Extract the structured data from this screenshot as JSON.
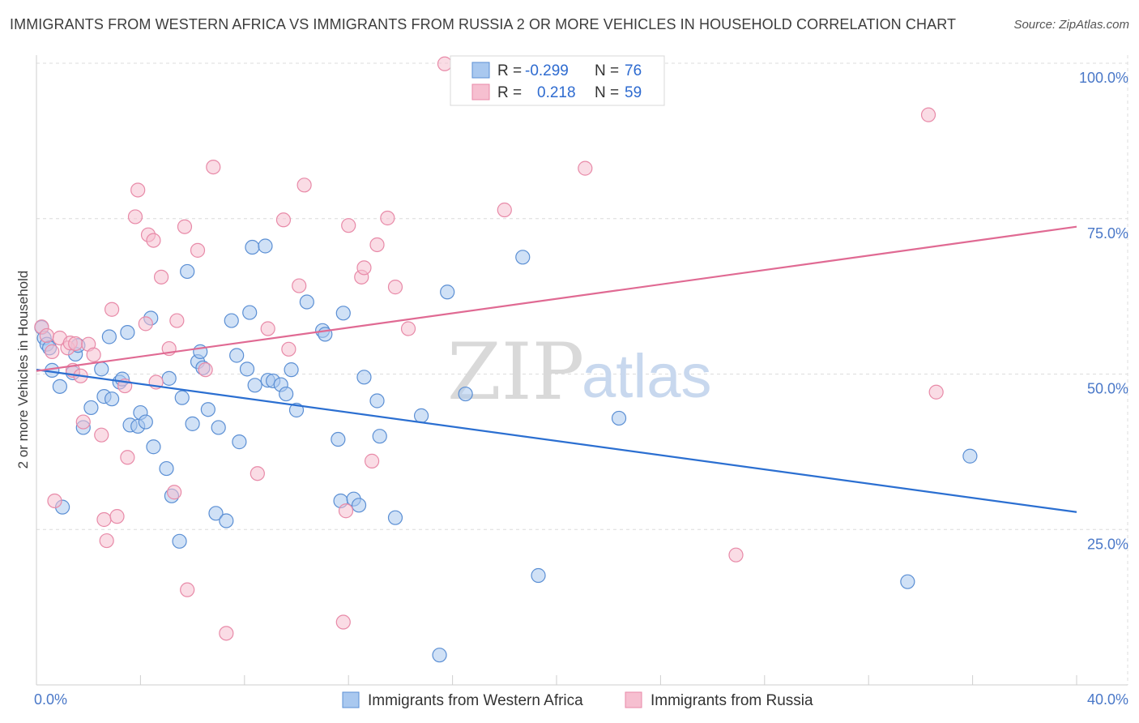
{
  "title": "IMMIGRANTS FROM WESTERN AFRICA VS IMMIGRANTS FROM RUSSIA 2 OR MORE VEHICLES IN HOUSEHOLD CORRELATION CHART",
  "source": "Source: ZipAtlas.com",
  "watermark": {
    "zip": "ZIP",
    "atlas": "atlas"
  },
  "colors": {
    "blue_fill": "#a9c8ef",
    "blue_stroke": "#5b8fd4",
    "blue_line": "#2b6fd1",
    "pink_fill": "#f6bfd0",
    "pink_stroke": "#e88aa8",
    "pink_line": "#e06a93",
    "grid": "#dcdcdc",
    "tick_label": "#4a78c8"
  },
  "legend": {
    "r_label": "R =",
    "n_label": "N =",
    "rows": [
      {
        "r": "-0.299",
        "n": "76",
        "series": "blue"
      },
      {
        "r": "0.218",
        "n": "59",
        "series": "pink"
      }
    ]
  },
  "chart_data": {
    "type": "scatter",
    "title": "IMMIGRANTS FROM WESTERN AFRICA VS IMMIGRANTS FROM RUSSIA 2 OR MORE VEHICLES IN HOUSEHOLD CORRELATION CHART",
    "xlabel": "",
    "ylabel": "2 or more Vehicles in Household",
    "xlim": [
      0,
      40
    ],
    "ylim": [
      0,
      100
    ],
    "x_tick_labels": [
      "0.0%",
      "40.0%"
    ],
    "y_ticks": [
      25,
      50,
      75,
      100
    ],
    "y_tick_labels": [
      "25.0%",
      "50.0%",
      "75.0%",
      "100.0%"
    ],
    "grid": true,
    "legend_position": "top-center",
    "series": [
      {
        "name": "Immigrants from Western Africa",
        "color": "#a9c8ef",
        "R": -0.299,
        "N": 76,
        "trend": {
          "x": [
            0,
            40
          ],
          "y": [
            50.7,
            27.8
          ]
        },
        "points": [
          [
            0.2,
            57.5
          ],
          [
            0.3,
            55.8
          ],
          [
            0.4,
            54.8
          ],
          [
            0.5,
            54.2
          ],
          [
            0.6,
            50.6
          ],
          [
            0.9,
            48.0
          ],
          [
            1.0,
            28.6
          ],
          [
            1.4,
            50.2
          ],
          [
            1.5,
            53.2
          ],
          [
            1.6,
            54.6
          ],
          [
            1.8,
            41.4
          ],
          [
            2.1,
            44.6
          ],
          [
            2.5,
            50.8
          ],
          [
            2.6,
            46.4
          ],
          [
            2.8,
            56.0
          ],
          [
            2.9,
            46.0
          ],
          [
            3.2,
            48.7
          ],
          [
            3.3,
            49.2
          ],
          [
            3.5,
            56.7
          ],
          [
            3.6,
            41.8
          ],
          [
            3.9,
            41.6
          ],
          [
            4.0,
            43.8
          ],
          [
            4.2,
            42.3
          ],
          [
            4.4,
            59.0
          ],
          [
            4.5,
            38.3
          ],
          [
            5.0,
            34.8
          ],
          [
            5.1,
            49.3
          ],
          [
            5.2,
            30.4
          ],
          [
            5.5,
            23.1
          ],
          [
            5.6,
            46.2
          ],
          [
            5.8,
            66.5
          ],
          [
            6.0,
            42.0
          ],
          [
            6.2,
            52.0
          ],
          [
            6.3,
            53.6
          ],
          [
            6.4,
            51.0
          ],
          [
            6.6,
            44.3
          ],
          [
            6.9,
            27.6
          ],
          [
            7.0,
            41.4
          ],
          [
            7.3,
            26.4
          ],
          [
            7.5,
            58.6
          ],
          [
            7.7,
            53.0
          ],
          [
            7.8,
            39.1
          ],
          [
            8.1,
            50.8
          ],
          [
            8.2,
            59.9
          ],
          [
            8.3,
            70.4
          ],
          [
            8.4,
            48.2
          ],
          [
            8.8,
            70.6
          ],
          [
            8.9,
            49.0
          ],
          [
            9.1,
            48.9
          ],
          [
            9.4,
            48.3
          ],
          [
            9.6,
            46.8
          ],
          [
            9.8,
            50.7
          ],
          [
            10.0,
            44.2
          ],
          [
            10.4,
            61.6
          ],
          [
            11.0,
            57.0
          ],
          [
            11.1,
            56.4
          ],
          [
            11.6,
            39.5
          ],
          [
            11.7,
            29.6
          ],
          [
            11.8,
            59.8
          ],
          [
            12.2,
            29.9
          ],
          [
            12.4,
            28.9
          ],
          [
            12.6,
            49.5
          ],
          [
            13.1,
            45.7
          ],
          [
            13.2,
            40.0
          ],
          [
            13.8,
            26.9
          ],
          [
            14.8,
            43.3
          ],
          [
            15.5,
            4.8
          ],
          [
            15.8,
            63.2
          ],
          [
            16.5,
            46.8
          ],
          [
            18.7,
            68.8
          ],
          [
            19.3,
            17.6
          ],
          [
            22.4,
            42.9
          ],
          [
            33.5,
            16.6
          ],
          [
            35.9,
            36.8
          ]
        ]
      },
      {
        "name": "Immigrants from Russia",
        "color": "#f6bfd0",
        "R": 0.218,
        "N": 59,
        "trend": {
          "x": [
            0,
            40
          ],
          "y": [
            50.5,
            73.7
          ]
        },
        "points": [
          [
            0.2,
            57.6
          ],
          [
            0.4,
            56.2
          ],
          [
            0.6,
            53.6
          ],
          [
            0.7,
            29.6
          ],
          [
            0.9,
            55.8
          ],
          [
            1.2,
            54.2
          ],
          [
            1.3,
            55.0
          ],
          [
            1.4,
            50.6
          ],
          [
            1.5,
            54.9
          ],
          [
            1.7,
            49.7
          ],
          [
            1.8,
            42.3
          ],
          [
            2.0,
            54.8
          ],
          [
            2.2,
            53.1
          ],
          [
            2.5,
            40.2
          ],
          [
            2.6,
            26.6
          ],
          [
            2.7,
            23.2
          ],
          [
            2.9,
            60.4
          ],
          [
            3.1,
            27.1
          ],
          [
            3.4,
            48.1
          ],
          [
            3.5,
            36.6
          ],
          [
            3.8,
            75.3
          ],
          [
            3.9,
            79.6
          ],
          [
            4.2,
            58.1
          ],
          [
            4.3,
            72.4
          ],
          [
            4.5,
            71.5
          ],
          [
            4.6,
            48.7
          ],
          [
            4.8,
            65.6
          ],
          [
            5.1,
            54.1
          ],
          [
            5.3,
            31.0
          ],
          [
            5.4,
            58.6
          ],
          [
            5.7,
            73.7
          ],
          [
            5.8,
            15.3
          ],
          [
            6.2,
            69.9
          ],
          [
            6.5,
            50.7
          ],
          [
            6.8,
            83.3
          ],
          [
            7.3,
            8.3
          ],
          [
            8.5,
            34.0
          ],
          [
            8.9,
            57.3
          ],
          [
            9.5,
            74.8
          ],
          [
            9.7,
            54.0
          ],
          [
            10.1,
            64.2
          ],
          [
            10.3,
            80.4
          ],
          [
            11.8,
            10.1
          ],
          [
            11.9,
            28.0
          ],
          [
            12.0,
            73.9
          ],
          [
            12.5,
            65.6
          ],
          [
            12.6,
            67.1
          ],
          [
            12.9,
            36.0
          ],
          [
            13.1,
            70.8
          ],
          [
            13.5,
            75.1
          ],
          [
            13.8,
            64.0
          ],
          [
            14.3,
            57.3
          ],
          [
            15.7,
            99.9
          ],
          [
            18.0,
            76.4
          ],
          [
            21.1,
            83.1
          ],
          [
            26.9,
            20.9
          ],
          [
            34.3,
            91.7
          ],
          [
            34.6,
            47.1
          ]
        ]
      }
    ]
  }
}
